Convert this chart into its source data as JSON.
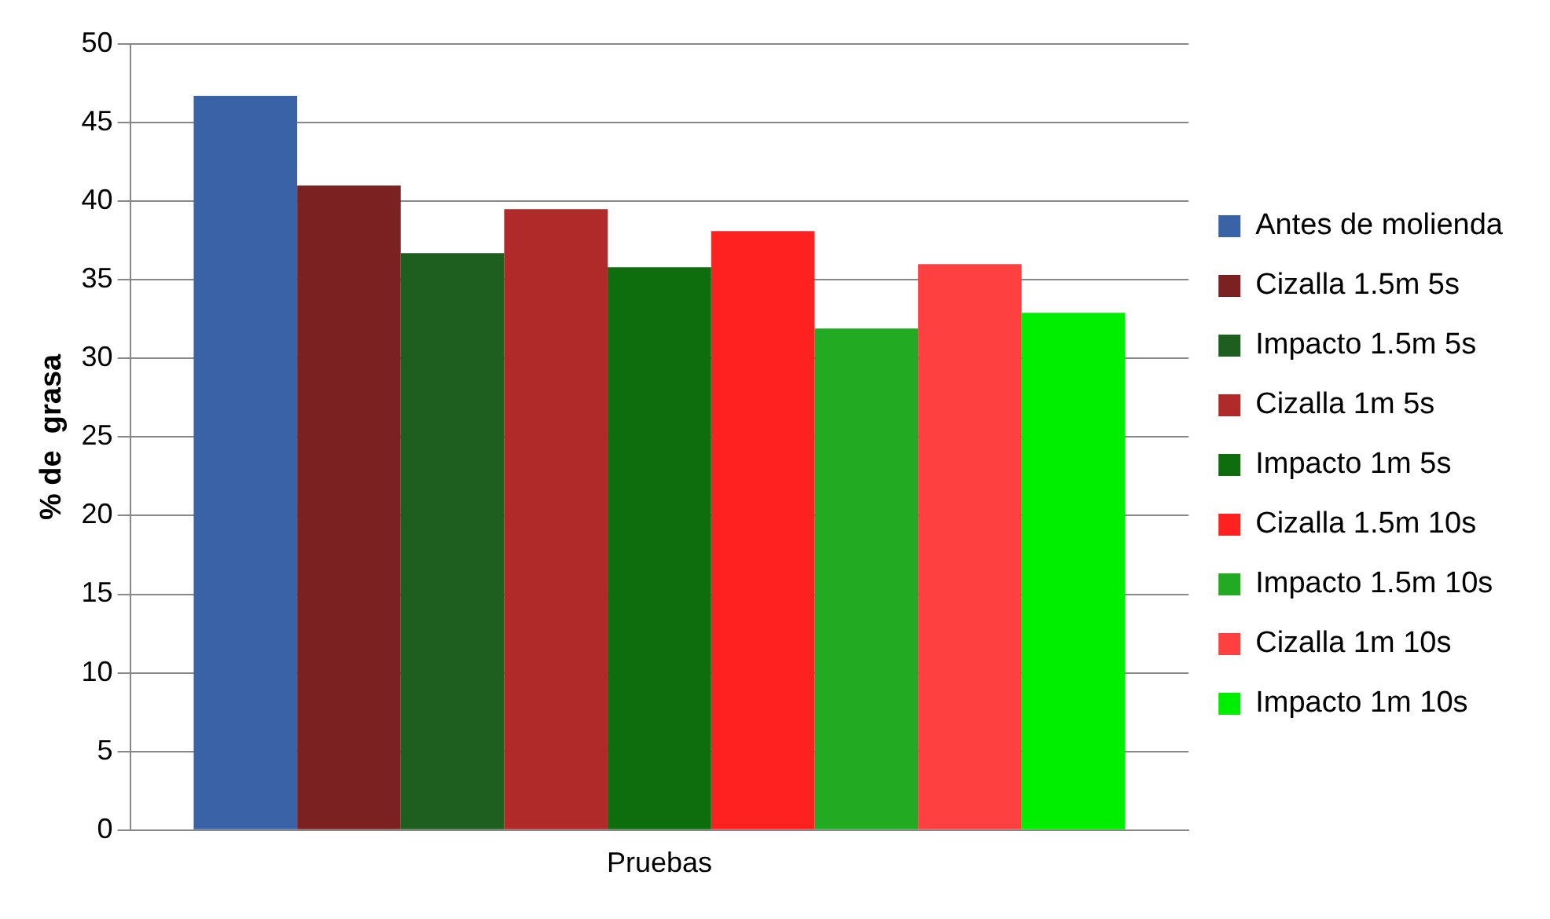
{
  "chart_data": {
    "type": "bar",
    "ylabel": "% de  grasa",
    "categories": [
      "Pruebas"
    ],
    "series": [
      {
        "name": "Antes de molienda",
        "color": "#3a62a7",
        "values": [
          46.7
        ]
      },
      {
        "name": "Cizalla 1.5m 5s",
        "color": "#7b2121",
        "values": [
          41.0
        ]
      },
      {
        "name": "Impacto 1.5m 5s",
        "color": "#1e5e1e",
        "values": [
          36.7
        ]
      },
      {
        "name": "Cizalla 1m 5s",
        "color": "#b02a2a",
        "values": [
          39.5
        ]
      },
      {
        "name": "Impacto 1m 5s",
        "color": "#0e6e0e",
        "values": [
          35.8
        ]
      },
      {
        "name": "Cizalla 1.5m 10s",
        "color": "#ff2020",
        "values": [
          38.1
        ]
      },
      {
        "name": "Impacto 1.5m 10s",
        "color": "#22aa22",
        "values": [
          31.9
        ]
      },
      {
        "name": "Cizalla 1m 10s",
        "color": "#ff4040",
        "values": [
          36.0
        ]
      },
      {
        "name": "Impacto 1m 10s",
        "color": "#00ee00",
        "values": [
          32.9
        ]
      }
    ],
    "ylim": [
      0,
      50
    ],
    "yticks": [
      0,
      5,
      10,
      15,
      20,
      25,
      30,
      35,
      40,
      45,
      50
    ],
    "grid": "y",
    "legend": "right"
  }
}
